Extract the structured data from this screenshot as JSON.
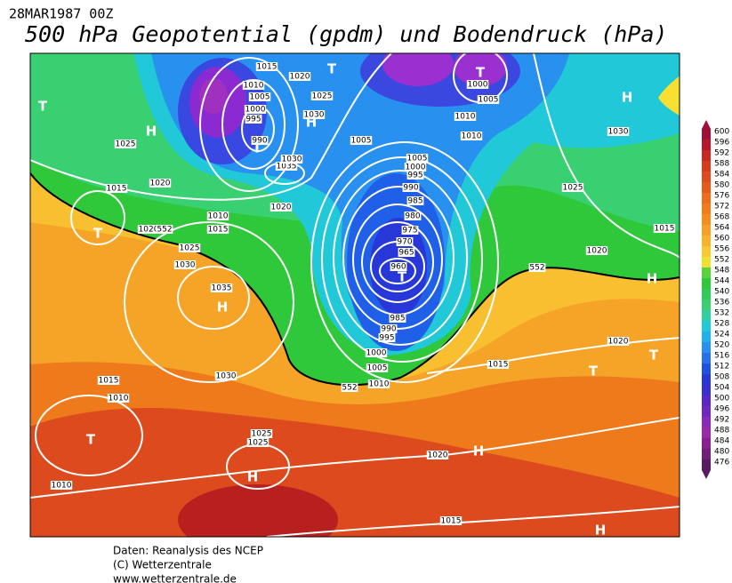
{
  "header": {
    "date": "28MAR1987 00Z",
    "title": "500 hPa Geopotential (gpdm) und Bodendruck (hPa)"
  },
  "colorbar": {
    "ticks": [
      600,
      596,
      592,
      588,
      584,
      580,
      576,
      572,
      568,
      564,
      560,
      556,
      552,
      548,
      544,
      540,
      536,
      532,
      528,
      524,
      520,
      516,
      512,
      508,
      504,
      500,
      496,
      492,
      488,
      484,
      480,
      476
    ]
  },
  "map_labels": [
    "1015",
    "1020",
    "1010",
    "1005",
    "1025",
    "1000",
    "995",
    "1030",
    "990",
    "1035",
    "1030",
    "1020",
    "1015",
    "1010",
    "1025",
    "1030",
    "1035",
    "1030",
    "1015",
    "1010",
    "1010",
    "1025",
    "1025",
    "1020",
    "1020",
    "1015",
    "1025",
    "1005",
    "1000",
    "995",
    "990",
    "985",
    "980",
    "975",
    "970",
    "965",
    "960",
    "985",
    "990",
    "995",
    "1000",
    "1005",
    "1010",
    "1005",
    "1010",
    "1010",
    "1005",
    "1000",
    "1015",
    "1020",
    "1015",
    "1020",
    "1020",
    "1025",
    "1030",
    "1015",
    "T",
    "H",
    "T",
    "H",
    "T",
    "H",
    "T",
    "H",
    "T",
    "T",
    "T",
    "H",
    "H",
    "T",
    "T",
    "H",
    "H",
    "552",
    "552",
    "552"
  ],
  "footer": [
    "Daten: Reanalysis des NCEP",
    "(C) Wetterzentrale",
    "www.wetterzentrale.de"
  ]
}
